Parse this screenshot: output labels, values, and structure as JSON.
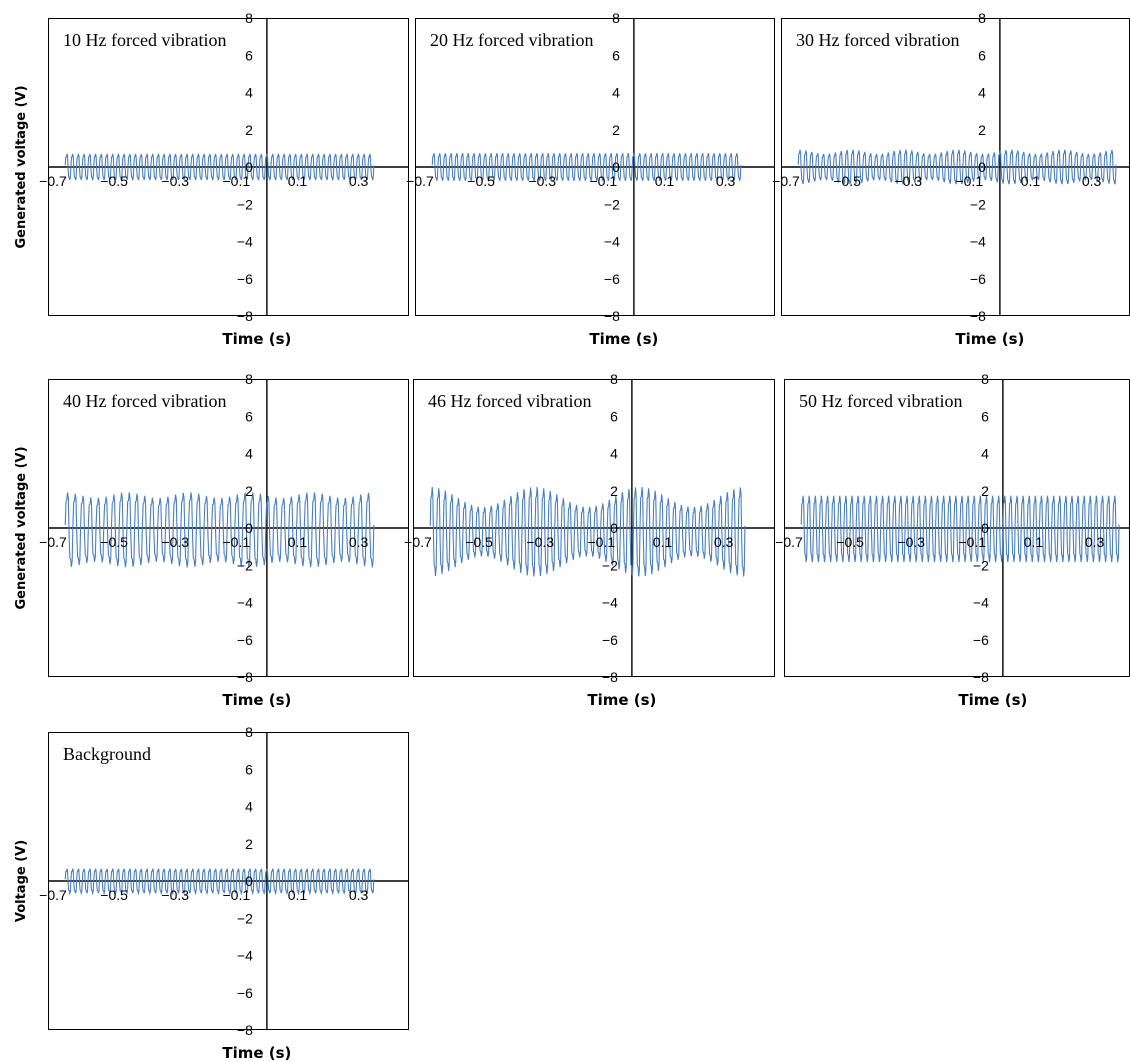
{
  "colors": {
    "series": "#4a7fbf",
    "axis": "#000000",
    "frame": "#000000",
    "background": "#ffffff"
  },
  "chart_data": [
    {
      "type": "line",
      "title": "10 Hz forced vibration",
      "xlabel": "Time (s)",
      "ylabel": "Generated voltage (V)",
      "xlim": [
        -0.7,
        0.38
      ],
      "ylim": [
        -8,
        8
      ],
      "xticks": [
        "−0.7",
        "−0.5",
        "−0.3",
        "−0.1",
        "0.1",
        "0.3"
      ],
      "yticks": [
        "−8",
        "−6",
        "−4",
        "−2",
        "0",
        "2",
        "4",
        "6",
        "8"
      ],
      "grid": false,
      "signal": {
        "x_start": -0.66,
        "x_end": 0.35,
        "cycles": 54,
        "amplitude": 0.9,
        "offset": 0.0,
        "beat_depth": 0,
        "beat_cycles": 0
      }
    },
    {
      "type": "line",
      "title": "20 Hz forced vibration",
      "xlabel": "Time (s)",
      "ylabel": "",
      "xlim": [
        -0.7,
        0.38
      ],
      "ylim": [
        -8,
        8
      ],
      "xticks": [
        "−0.7",
        "−0.5",
        "−0.3",
        "−0.1",
        "0.1",
        "0.3"
      ],
      "yticks": [
        "−8",
        "−6",
        "−4",
        "−2",
        "0",
        "2",
        "4",
        "6",
        "8"
      ],
      "grid": false,
      "signal": {
        "x_start": -0.66,
        "x_end": 0.35,
        "cycles": 54,
        "amplitude": 0.95,
        "offset": 0.0,
        "beat_depth": 0,
        "beat_cycles": 0
      }
    },
    {
      "type": "line",
      "title": "30 Hz forced vibration",
      "xlabel": "Time (s)",
      "ylabel": "",
      "xlim": [
        -0.7,
        0.38
      ],
      "ylim": [
        -8,
        8
      ],
      "xticks": [
        "−0.7",
        "−0.5",
        "−0.3",
        "−0.1",
        "0.1",
        "0.3"
      ],
      "yticks": [
        "−8",
        "−6",
        "−4",
        "−2",
        "0",
        "2",
        "4",
        "6",
        "8"
      ],
      "grid": false,
      "signal": {
        "x_start": -0.66,
        "x_end": 0.38,
        "cycles": 54,
        "amplitude": 1.2,
        "offset": 0.0,
        "beat_depth": 0.25,
        "beat_cycles": 6
      }
    },
    {
      "type": "line",
      "title": "40 Hz forced vibration",
      "xlabel": "Time (s)",
      "ylabel": "Generated voltage (V)",
      "xlim": [
        -0.7,
        0.38
      ],
      "ylim": [
        -8,
        8
      ],
      "xticks": [
        "−0.7",
        "−0.5",
        "−0.3",
        "−0.1",
        "0.1",
        "0.3"
      ],
      "yticks": [
        "−8",
        "−6",
        "−4",
        "−2",
        "0",
        "2",
        "4",
        "6",
        "8"
      ],
      "grid": false,
      "signal": {
        "x_start": -0.66,
        "x_end": 0.35,
        "cycles": 40,
        "amplitude": 2.6,
        "offset": -0.1,
        "beat_depth": 0.15,
        "beat_cycles": 5
      }
    },
    {
      "type": "line",
      "title": "46 Hz forced vibration",
      "xlabel": "Time (s)",
      "ylabel": "",
      "xlim": [
        -0.7,
        0.38
      ],
      "ylim": [
        -8,
        8
      ],
      "xticks": [
        "−0.7",
        "−0.5",
        "−0.3",
        "−0.1",
        "0.1",
        "0.3"
      ],
      "yticks": [
        "−8",
        "−6",
        "−4",
        "−2",
        "0",
        "2",
        "4",
        "6",
        "8"
      ],
      "grid": false,
      "signal": {
        "x_start": -0.66,
        "x_end": 0.37,
        "cycles": 48,
        "amplitude": 3.1,
        "offset": -0.2,
        "beat_depth": 0.45,
        "beat_cycles": 3
      }
    },
    {
      "type": "line",
      "title": "50 Hz forced vibration",
      "xlabel": "Time (s)",
      "ylabel": "",
      "xlim": [
        -0.7,
        0.38
      ],
      "ylim": [
        -8,
        8
      ],
      "xticks": [
        "−0.7",
        "−0.5",
        "−0.3",
        "−0.1",
        "0.1",
        "0.3"
      ],
      "yticks": [
        "−8",
        "−6",
        "−4",
        "−2",
        "0",
        "2",
        "4",
        "6",
        "8"
      ],
      "grid": false,
      "signal": {
        "x_start": -0.66,
        "x_end": 0.38,
        "cycles": 52,
        "amplitude": 2.3,
        "offset": -0.05,
        "beat_depth": 0,
        "beat_cycles": 0
      }
    },
    {
      "type": "line",
      "title": "Background",
      "xlabel": "Time (s)",
      "ylabel": "Voltage (V)",
      "xlim": [
        -0.7,
        0.38
      ],
      "ylim": [
        -8,
        8
      ],
      "xticks": [
        "−0.7",
        "−0.5",
        "−0.3",
        "−0.1",
        "0.1",
        "0.3"
      ],
      "yticks": [
        "−8",
        "−6",
        "−4",
        "−2",
        "0",
        "2",
        "4",
        "6",
        "8"
      ],
      "grid": false,
      "signal": {
        "x_start": -0.66,
        "x_end": 0.35,
        "cycles": 54,
        "amplitude": 0.85,
        "offset": 0.0,
        "beat_depth": 0,
        "beat_cycles": 0
      }
    }
  ]
}
